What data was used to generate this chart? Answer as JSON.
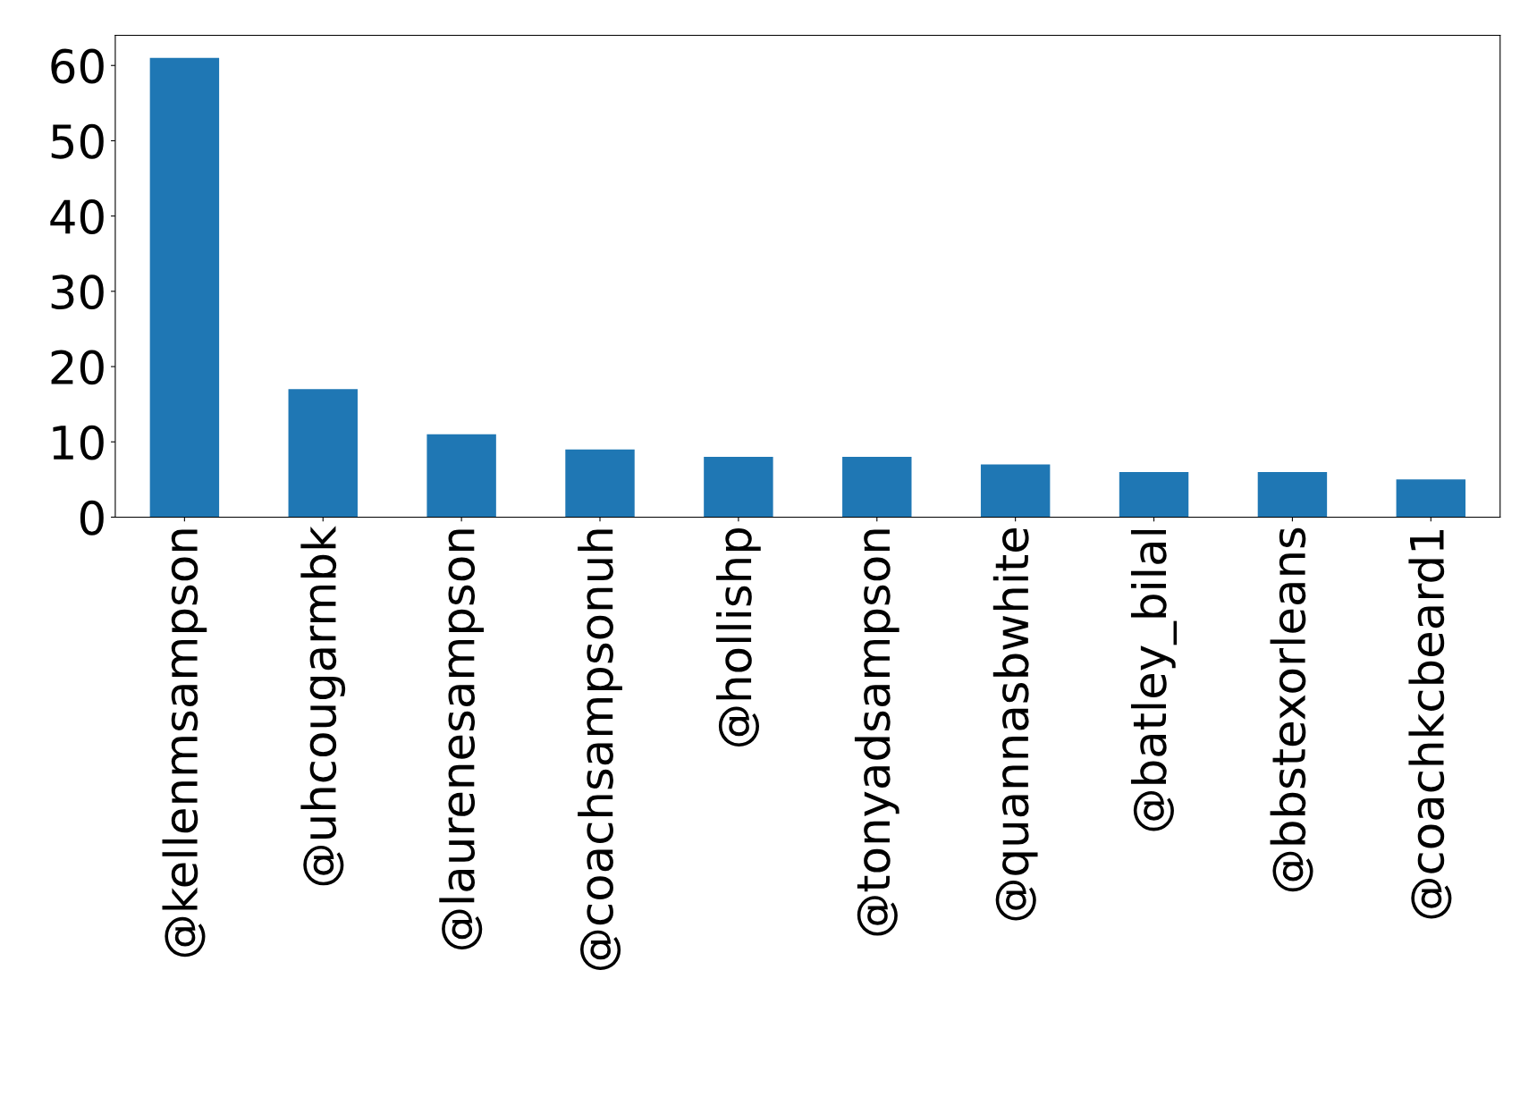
{
  "chart_data": {
    "type": "bar",
    "categories": [
      "@kellenmsampson",
      "@uhcougarmbk",
      "@laurenesampson",
      "@coachsampsonuh",
      "@hollishp",
      "@tonyadsampson",
      "@quannasbwhite",
      "@batley_bilal",
      "@bbstexorleans",
      "@coachkcbeard1"
    ],
    "values": [
      61,
      17,
      11,
      9,
      8,
      8,
      7,
      6,
      6,
      5
    ],
    "color": "#1f77b4",
    "ylim": [
      0,
      64
    ],
    "yticks": [
      0,
      10,
      20,
      30,
      40,
      50,
      60
    ],
    "grid": false,
    "legend": false
  }
}
